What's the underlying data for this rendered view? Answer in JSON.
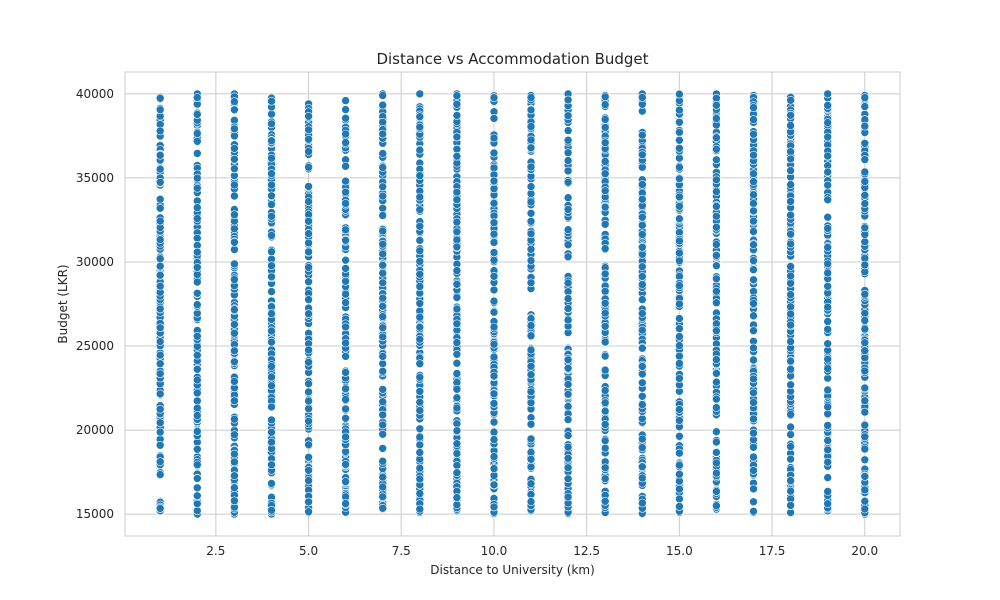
{
  "chart_data": {
    "type": "scatter",
    "title": "Distance vs Accommodation Budget",
    "xlabel": "Distance to University (km)",
    "ylabel": "Budget (LKR)",
    "xlim": [
      0.05,
      20.95
    ],
    "ylim": [
      13700,
      41300
    ],
    "x_ticks": [
      2.5,
      5.0,
      7.5,
      10.0,
      12.5,
      15.0,
      17.5,
      20.0
    ],
    "x_tick_labels": [
      "2.5",
      "5.0",
      "7.5",
      "10.0",
      "12.5",
      "15.0",
      "17.5",
      "20.0"
    ],
    "y_ticks": [
      15000,
      20000,
      25000,
      30000,
      35000,
      40000
    ],
    "y_tick_labels": [
      "15000",
      "20000",
      "25000",
      "30000",
      "35000",
      "40000"
    ],
    "grid": true,
    "marker_color": "#1f77b4",
    "marker_edge_color": "#ffffff",
    "series": [
      {
        "x_values": [
          1,
          2,
          3,
          4,
          5,
          6,
          7,
          8,
          9,
          10,
          11,
          12,
          13,
          14,
          15,
          16,
          17,
          18,
          19,
          20
        ],
        "y_min": [
          15200,
          15000,
          15000,
          15000,
          15100,
          15100,
          15300,
          15100,
          15200,
          15000,
          15200,
          15000,
          15100,
          15000,
          15100,
          15300,
          15100,
          15100,
          15200,
          15000
        ],
        "y_max": [
          39800,
          40000,
          40000,
          39800,
          39400,
          39600,
          40000,
          40000,
          40000,
          39900,
          39900,
          40000,
          39900,
          40000,
          40000,
          40000,
          39900,
          39800,
          40000,
          39900
        ]
      }
    ]
  }
}
